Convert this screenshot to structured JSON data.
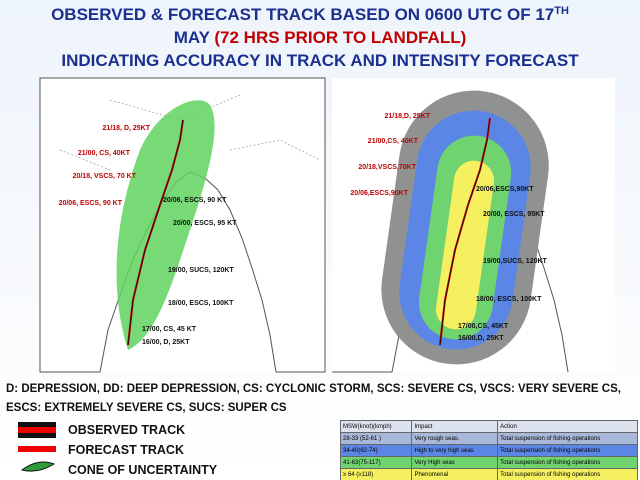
{
  "header": {
    "line1": "OBSERVED & FORECAST TRACK BASED ON 0600 UTC OF 17",
    "line1_sup": "TH",
    "line2_a": "MAY",
    "line2_b": "(72 HRS PRIOR TO LANDFALL)",
    "line3": "INDICATING ACCURACY IN TRACK AND INTENSITY FORECAST"
  },
  "left_map": {
    "labels": [
      "21/18, D, 25KT",
      "21/00, CS, 40KT",
      "20/18, VSCS, 70 KT",
      "20/06, ESCS, 90 KT",
      "20/06, ESCS, 90 KT",
      "20/00, ESCS, 95 KT",
      "19/00, SUCS, 120KT",
      "18/00, ESCS, 100KT",
      "17/00, CS, 45 KT",
      "16/00, D, 25KT"
    ]
  },
  "right_map": {
    "labels": [
      "21/18,D, 25KT",
      "21/00,CS, 40KT",
      "20/18,VSCS,70KT",
      "20/06,ESCS,90KT",
      "20/06,ESCS,90KT",
      "20/00, ESCS, 95KT",
      "19/00,SUCS, 120KT",
      "18/00, ESCS, 100KT",
      "17/00,CS, 45KT",
      "16/00,D, 25KT"
    ]
  },
  "abbreviations": "D: DEPRESSION, DD: DEEP DEPRESSION, CS: CYCLONIC STORM, SCS: SEVERE CS, VSCS: VERY SEVERE CS, ESCS: EXTREMELY SEVERE CS, SUCS: SUPER CS",
  "legend": [
    "OBSERVED TRACK",
    "FORECAST TRACK",
    "CONE OF UNCERTAINTY"
  ],
  "table": {
    "header": [
      "MSW(knot)(kmph)",
      "Impact",
      "Action"
    ],
    "rows": [
      [
        "28-33 (52-61 )",
        "Very rough seas.",
        "Total suspension of fishing operations"
      ],
      [
        "34-40(62-74)",
        "High to very high seas",
        "Total suspension of fishing operations"
      ],
      [
        "41-63(75-117)",
        "Very High seas",
        "Total suspension of fishing operations"
      ],
      [
        "≥ 64 (≥118)",
        "Phenomenal",
        "Total suspension of fishing operations"
      ]
    ]
  }
}
